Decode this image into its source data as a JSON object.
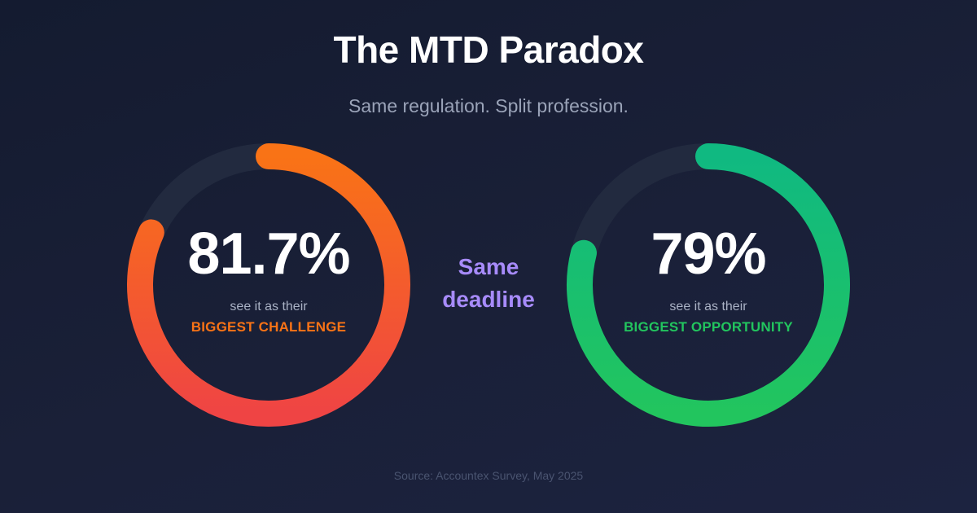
{
  "title": "The MTD Paradox",
  "subtitle": "Same regulation. Split profession.",
  "left_stat": {
    "value_text": "81.7%",
    "value_fraction": 0.817,
    "caption": "see it as their",
    "label": "BIGGEST CHALLENGE",
    "color_start": "#f97316",
    "color_end": "#ef4444"
  },
  "middle": {
    "line1": "Same",
    "line2": "deadline"
  },
  "right_stat": {
    "value_text": "79%",
    "value_fraction": 0.79,
    "caption": "see it as their",
    "label": "BIGGEST OPPORTUNITY",
    "color_start": "#10b981",
    "color_end": "#22c55e"
  },
  "source": "Source: Accountex Survey, May 2025",
  "colors": {
    "background": "#161d33",
    "track": "#222a3f",
    "accent_purple": "#a78bfa"
  }
}
